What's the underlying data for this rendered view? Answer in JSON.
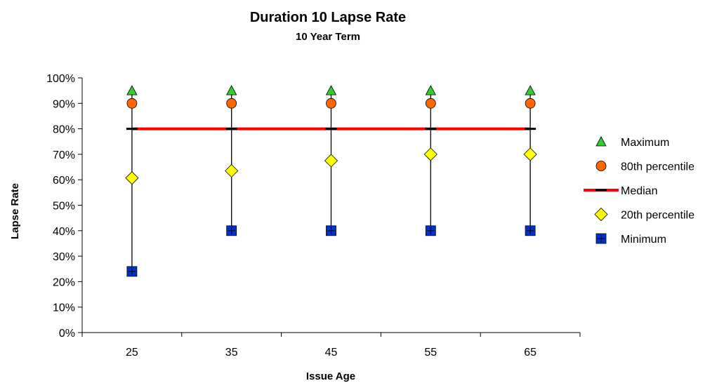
{
  "chart_data": {
    "type": "scatter",
    "title": "Duration 10 Lapse Rate",
    "subtitle": "10 Year Term",
    "xlabel": "Issue Age",
    "ylabel": "Lapse Rate",
    "categories": [
      "25",
      "35",
      "45",
      "55",
      "65"
    ],
    "ylim": [
      0,
      100
    ],
    "yticks": [
      "0%",
      "10%",
      "20%",
      "30%",
      "40%",
      "50%",
      "60%",
      "70%",
      "80%",
      "90%",
      "100%"
    ],
    "grid": false,
    "legend_position": "right",
    "series": [
      {
        "name": "Maximum",
        "marker": "triangle",
        "color": "#33cc33",
        "values": [
          95,
          95,
          95,
          95,
          95
        ]
      },
      {
        "name": "80th percentile",
        "marker": "circle",
        "color": "#ff6600",
        "values": [
          90,
          90,
          90,
          90,
          90
        ]
      },
      {
        "name": "Median",
        "marker": "dash",
        "color": "#ff0000",
        "values": [
          80,
          80,
          80,
          80,
          80
        ]
      },
      {
        "name": "20th percentile",
        "marker": "diamond",
        "color": "#ffff00",
        "values": [
          60.7,
          63.5,
          67.5,
          70,
          70
        ]
      },
      {
        "name": "Minimum",
        "marker": "square",
        "color": "#0033cc",
        "values": [
          24,
          40,
          40,
          40,
          40
        ]
      }
    ]
  }
}
